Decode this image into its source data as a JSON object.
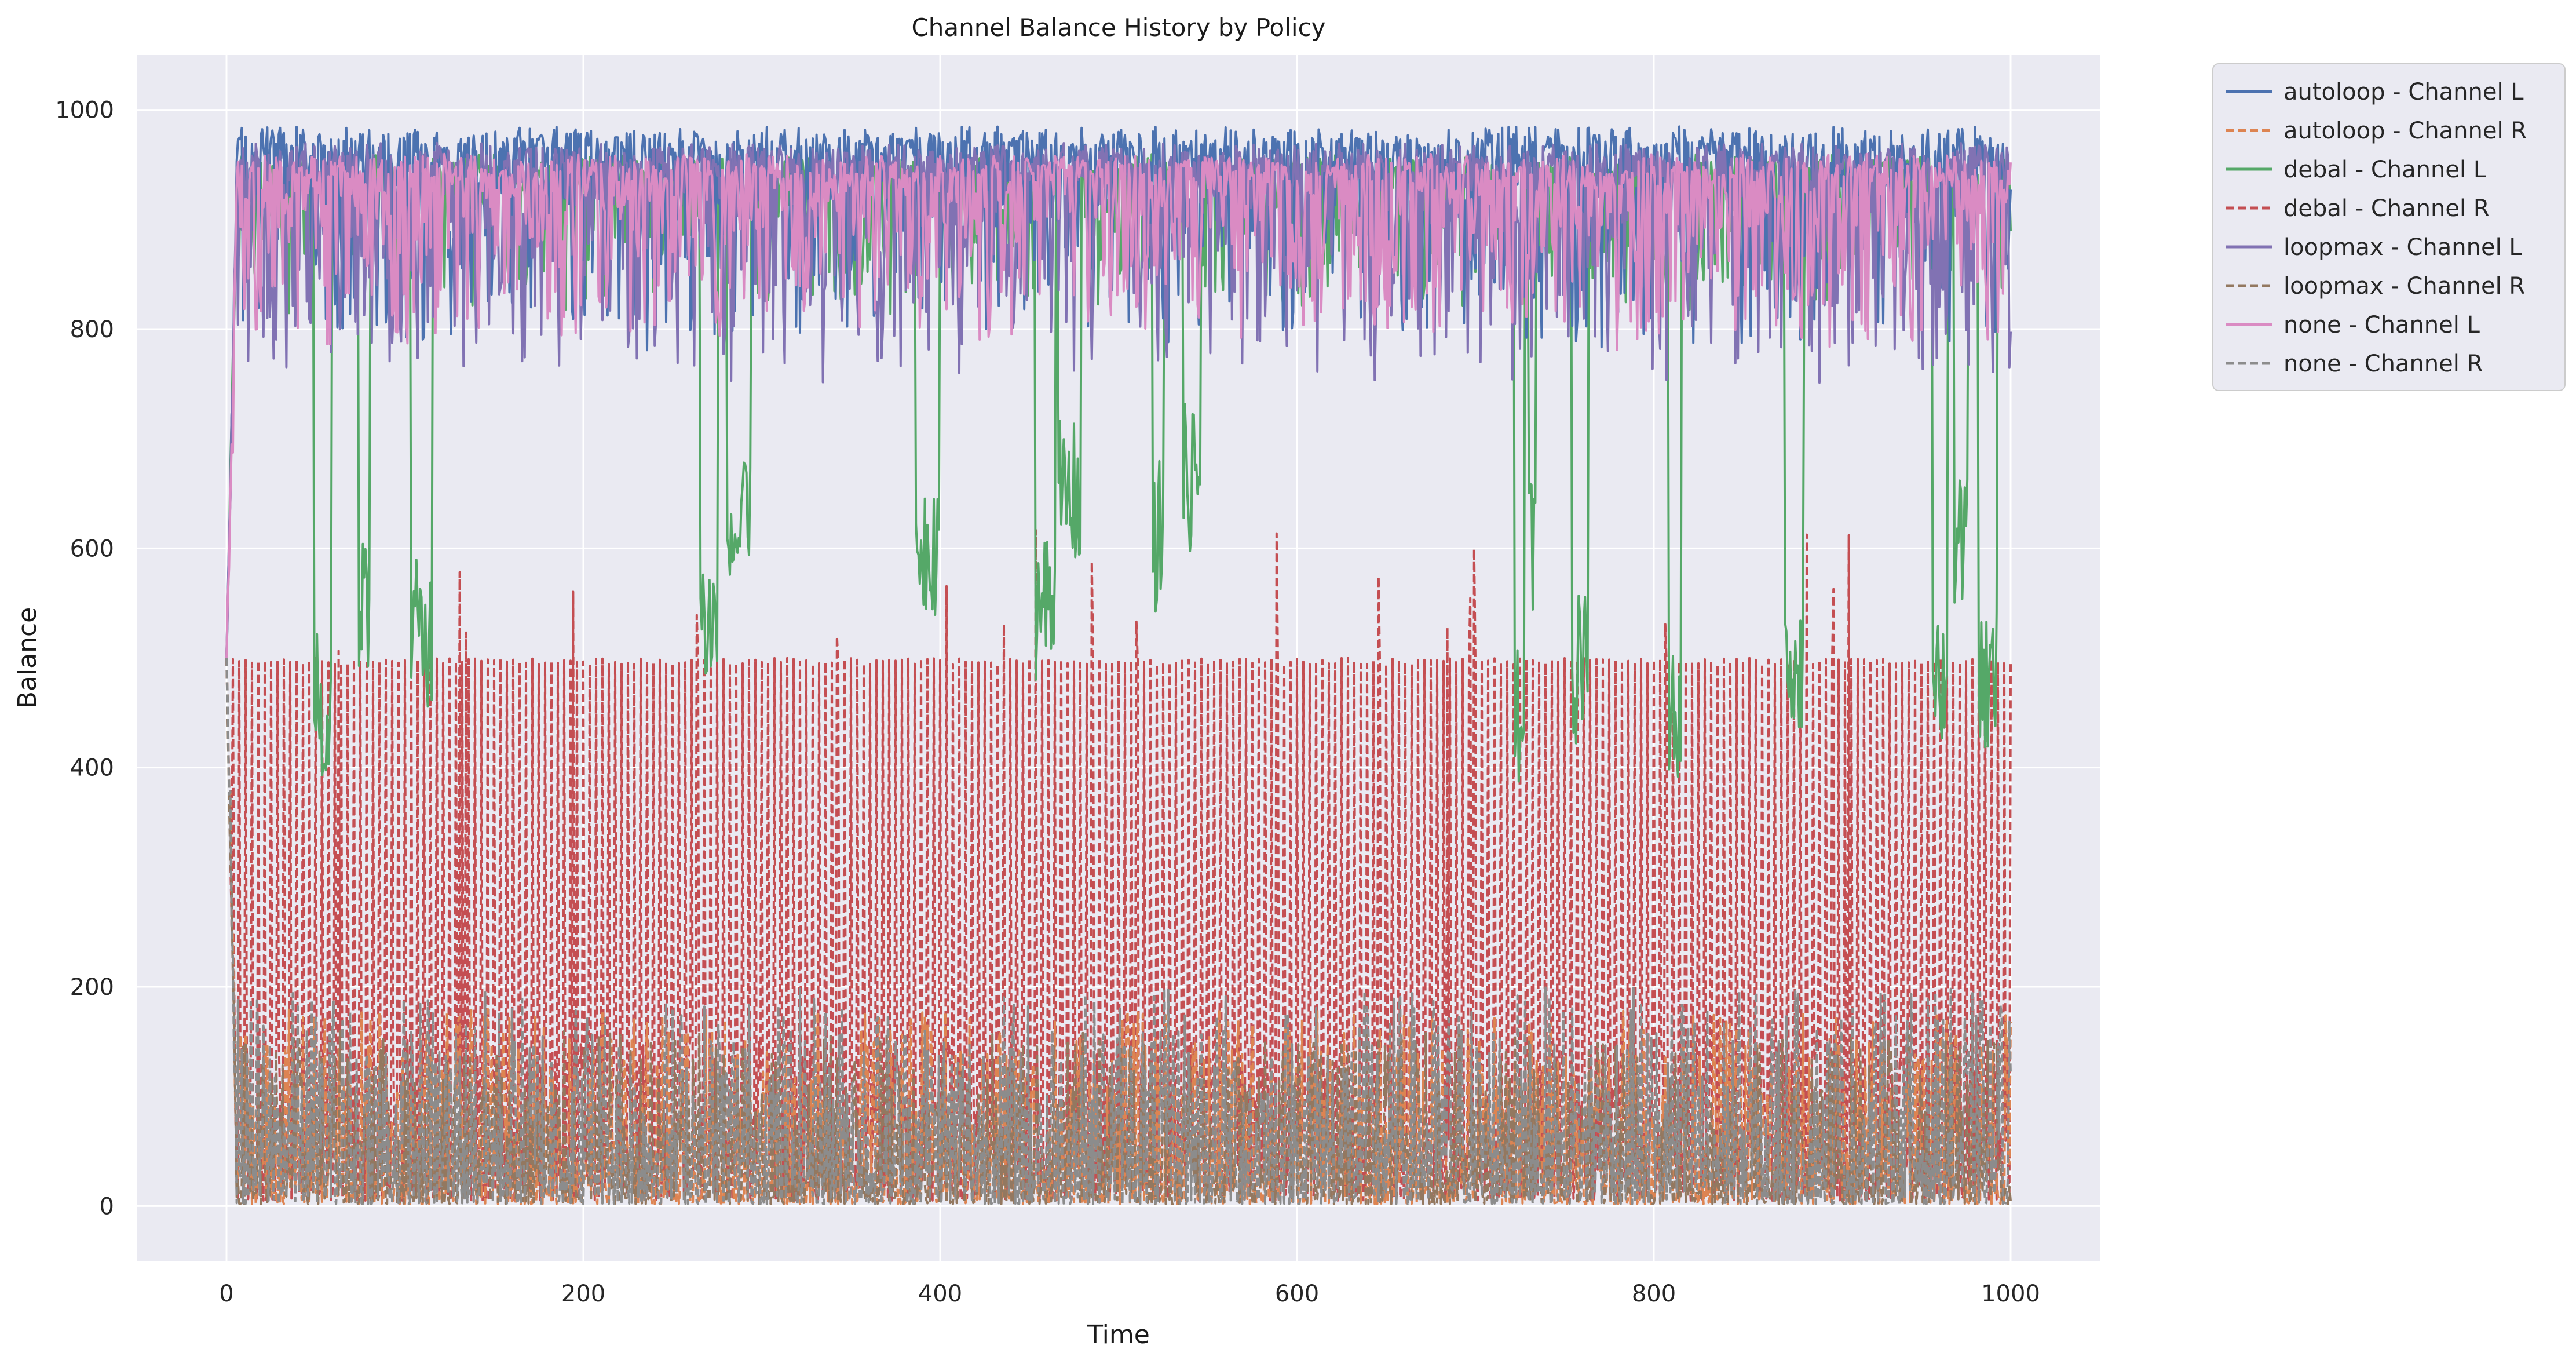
{
  "chart_data": {
    "type": "line",
    "title": "Channel Balance History by Policy",
    "xlabel": "Time",
    "ylabel": "Balance",
    "xlim": [
      -50,
      1050
    ],
    "ylim": [
      -50,
      1050
    ],
    "xticks": [
      0,
      200,
      400,
      600,
      800,
      1000
    ],
    "yticks": [
      0,
      200,
      400,
      600,
      800,
      1000
    ],
    "grid": true,
    "background": "#eaeaf2",
    "legend_placement": "outside-right-top",
    "series": [
      {
        "name": "autoloop - Channel L",
        "color": "#4c72b0",
        "style": "solid",
        "pattern": "high",
        "base": 985,
        "lo": 800,
        "start": 500
      },
      {
        "name": "autoloop - Channel R",
        "color": "#dd8452",
        "style": "dashed",
        "pattern": "low",
        "base": 30,
        "hi": 180,
        "start": 500
      },
      {
        "name": "debal - Channel L",
        "color": "#55a868",
        "style": "solid",
        "pattern": "dips",
        "base": 960,
        "lo": 360,
        "start": 500
      },
      {
        "name": "debal - Channel R",
        "color": "#c44e52",
        "style": "dashed",
        "pattern": "spikes",
        "base": 40,
        "hi": 500,
        "start": 500
      },
      {
        "name": "loopmax - Channel L",
        "color": "#8172b3",
        "style": "solid",
        "pattern": "high",
        "base": 970,
        "lo": 770,
        "start": 500
      },
      {
        "name": "loopmax - Channel R",
        "color": "#937860",
        "style": "dashed",
        "pattern": "low",
        "base": 30,
        "hi": 160,
        "start": 500
      },
      {
        "name": "none - Channel L",
        "color": "#da8bc3",
        "style": "solid",
        "pattern": "high",
        "base": 960,
        "lo": 800,
        "start": 500
      },
      {
        "name": "none - Channel R",
        "color": "#8c8c8c",
        "style": "dashed",
        "pattern": "low",
        "base": 35,
        "hi": 200,
        "start": 500
      }
    ]
  }
}
